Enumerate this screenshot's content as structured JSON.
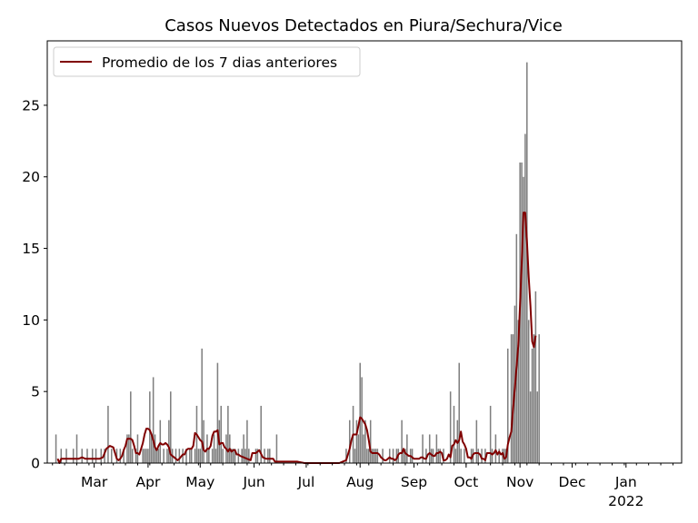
{
  "chart_data": {
    "type": "bar",
    "title": "Casos Nuevos Detectados en Piura/Sechura/Vice",
    "xlabel": "",
    "ylabel": "",
    "ylim": [
      0,
      29.5
    ],
    "y_ticks": [
      0,
      5,
      10,
      15,
      20,
      25
    ],
    "x_ticks": [
      {
        "label": "Mar",
        "day": 59
      },
      {
        "label": "Apr",
        "day": 90
      },
      {
        "label": "May",
        "day": 120
      },
      {
        "label": "Jun",
        "day": 151
      },
      {
        "label": "Jul",
        "day": 181
      },
      {
        "label": "Aug",
        "day": 212
      },
      {
        "label": "Sep",
        "day": 243
      },
      {
        "label": "Oct",
        "day": 273
      },
      {
        "label": "Nov",
        "day": 304
      },
      {
        "label": "Dec",
        "day": 334
      },
      {
        "label": "Jan",
        "day": 365,
        "sublabel": "2022"
      }
    ],
    "x_range_days": [
      32,
      397
    ],
    "bar_color": "#7f7f7f",
    "line_color": "#800000",
    "legend": {
      "label": "Promedio de los 7 dias anteriores",
      "position": "top-left"
    },
    "bars": [
      [
        37,
        2
      ],
      [
        40,
        1
      ],
      [
        43,
        1
      ],
      [
        47,
        1
      ],
      [
        49,
        2
      ],
      [
        52,
        1
      ],
      [
        55,
        1
      ],
      [
        58,
        1
      ],
      [
        60,
        1
      ],
      [
        63,
        1
      ],
      [
        65,
        1
      ],
      [
        67,
        4
      ],
      [
        69,
        1
      ],
      [
        72,
        1
      ],
      [
        74,
        1
      ],
      [
        76,
        1
      ],
      [
        78,
        2
      ],
      [
        79,
        2
      ],
      [
        80,
        5
      ],
      [
        81,
        1
      ],
      [
        83,
        1
      ],
      [
        84,
        2
      ],
      [
        87,
        1
      ],
      [
        88,
        1
      ],
      [
        89,
        1
      ],
      [
        90,
        1
      ],
      [
        91,
        5
      ],
      [
        92,
        2
      ],
      [
        93,
        6
      ],
      [
        94,
        2
      ],
      [
        95,
        1
      ],
      [
        96,
        1
      ],
      [
        97,
        3
      ],
      [
        99,
        1
      ],
      [
        101,
        1
      ],
      [
        102,
        3
      ],
      [
        103,
        5
      ],
      [
        104,
        1
      ],
      [
        106,
        1
      ],
      [
        108,
        1
      ],
      [
        110,
        1
      ],
      [
        112,
        1
      ],
      [
        114,
        1
      ],
      [
        115,
        1
      ],
      [
        117,
        1
      ],
      [
        118,
        4
      ],
      [
        119,
        1
      ],
      [
        120,
        1
      ],
      [
        121,
        8
      ],
      [
        122,
        3
      ],
      [
        124,
        2
      ],
      [
        125,
        1
      ],
      [
        127,
        1
      ],
      [
        128,
        2
      ],
      [
        129,
        1
      ],
      [
        130,
        7
      ],
      [
        131,
        3
      ],
      [
        132,
        4
      ],
      [
        133,
        1
      ],
      [
        135,
        2
      ],
      [
        136,
        4
      ],
      [
        137,
        2
      ],
      [
        138,
        1
      ],
      [
        139,
        1
      ],
      [
        140,
        1
      ],
      [
        142,
        1
      ],
      [
        144,
        1
      ],
      [
        145,
        2
      ],
      [
        146,
        1
      ],
      [
        147,
        3
      ],
      [
        148,
        1
      ],
      [
        152,
        1
      ],
      [
        153,
        1
      ],
      [
        155,
        4
      ],
      [
        157,
        1
      ],
      [
        159,
        1
      ],
      [
        160,
        1
      ],
      [
        164,
        2
      ],
      [
        204,
        1
      ],
      [
        206,
        3
      ],
      [
        208,
        4
      ],
      [
        209,
        1
      ],
      [
        210,
        3
      ],
      [
        211,
        2
      ],
      [
        212,
        7
      ],
      [
        213,
        6
      ],
      [
        214,
        2
      ],
      [
        215,
        3
      ],
      [
        216,
        1
      ],
      [
        217,
        1
      ],
      [
        218,
        3
      ],
      [
        219,
        1
      ],
      [
        220,
        1
      ],
      [
        221,
        1
      ],
      [
        222,
        1
      ],
      [
        225,
        1
      ],
      [
        229,
        1
      ],
      [
        231,
        1
      ],
      [
        233,
        1
      ],
      [
        234,
        1
      ],
      [
        236,
        3
      ],
      [
        237,
        1
      ],
      [
        238,
        1
      ],
      [
        239,
        2
      ],
      [
        241,
        1
      ],
      [
        242,
        1
      ],
      [
        248,
        2
      ],
      [
        250,
        1
      ],
      [
        252,
        2
      ],
      [
        253,
        1
      ],
      [
        254,
        1
      ],
      [
        256,
        2
      ],
      [
        257,
        1
      ],
      [
        258,
        1
      ],
      [
        260,
        1
      ],
      [
        264,
        5
      ],
      [
        266,
        4
      ],
      [
        267,
        1
      ],
      [
        268,
        3
      ],
      [
        269,
        7
      ],
      [
        270,
        1
      ],
      [
        272,
        1
      ],
      [
        276,
        1
      ],
      [
        277,
        1
      ],
      [
        279,
        3
      ],
      [
        280,
        1
      ],
      [
        282,
        1
      ],
      [
        284,
        1
      ],
      [
        287,
        4
      ],
      [
        288,
        1
      ],
      [
        290,
        2
      ],
      [
        292,
        1
      ],
      [
        294,
        1
      ],
      [
        295,
        1
      ],
      [
        296,
        1
      ],
      [
        297,
        8
      ],
      [
        299,
        9
      ],
      [
        300,
        9
      ],
      [
        301,
        11
      ],
      [
        302,
        16
      ],
      [
        303,
        10
      ],
      [
        304,
        21
      ],
      [
        305,
        21
      ],
      [
        306,
        20
      ],
      [
        307,
        23
      ],
      [
        308,
        28
      ],
      [
        309,
        10
      ],
      [
        310,
        5
      ],
      [
        311,
        8
      ],
      [
        312,
        9
      ],
      [
        313,
        12
      ],
      [
        314,
        5
      ],
      [
        315,
        9
      ]
    ],
    "avg_line": [
      [
        38,
        0.3
      ],
      [
        39,
        0
      ],
      [
        40,
        0.3
      ],
      [
        45,
        0.3
      ],
      [
        50,
        0.3
      ],
      [
        52,
        0.4
      ],
      [
        54,
        0.3
      ],
      [
        57,
        0.3
      ],
      [
        60,
        0.3
      ],
      [
        62,
        0.3
      ],
      [
        64,
        0.4
      ],
      [
        66,
        1.0
      ],
      [
        68,
        1.2
      ],
      [
        70,
        1.1
      ],
      [
        71,
        0.7
      ],
      [
        72,
        0.3
      ],
      [
        73,
        0.2
      ],
      [
        74,
        0.3
      ],
      [
        75,
        0.5
      ],
      [
        76,
        0.9
      ],
      [
        77,
        1.2
      ],
      [
        78,
        1.7
      ],
      [
        80,
        1.7
      ],
      [
        81,
        1.6
      ],
      [
        82,
        1.2
      ],
      [
        83,
        0.7
      ],
      [
        84,
        0.7
      ],
      [
        85,
        0.6
      ],
      [
        86,
        1.0
      ],
      [
        87,
        1.4
      ],
      [
        88,
        2.0
      ],
      [
        89,
        2.4
      ],
      [
        90,
        2.4
      ],
      [
        91,
        2.3
      ],
      [
        92,
        2.0
      ],
      [
        93,
        1.6
      ],
      [
        94,
        1.1
      ],
      [
        95,
        0.9
      ],
      [
        96,
        1.2
      ],
      [
        97,
        1.4
      ],
      [
        98,
        1.3
      ],
      [
        99,
        1.3
      ],
      [
        100,
        1.4
      ],
      [
        101,
        1.3
      ],
      [
        102,
        1.1
      ],
      [
        103,
        0.6
      ],
      [
        104,
        0.5
      ],
      [
        105,
        0.4
      ],
      [
        106,
        0.3
      ],
      [
        107,
        0.2
      ],
      [
        108,
        0.3
      ],
      [
        110,
        0.6
      ],
      [
        111,
        0.6
      ],
      [
        112,
        0.9
      ],
      [
        113,
        1.0
      ],
      [
        114,
        1.0
      ],
      [
        115,
        1.0
      ],
      [
        116,
        1.2
      ],
      [
        117,
        2.1
      ],
      [
        118,
        2.0
      ],
      [
        119,
        1.8
      ],
      [
        120,
        1.6
      ],
      [
        121,
        1.5
      ],
      [
        122,
        0.9
      ],
      [
        123,
        0.8
      ],
      [
        124,
        1.0
      ],
      [
        125,
        1.0
      ],
      [
        126,
        1.2
      ],
      [
        127,
        1.9
      ],
      [
        128,
        2.2
      ],
      [
        129,
        2.2
      ],
      [
        130,
        2.3
      ],
      [
        131,
        1.3
      ],
      [
        132,
        1.4
      ],
      [
        133,
        1.4
      ],
      [
        134,
        1.1
      ],
      [
        135,
        1.0
      ],
      [
        136,
        0.8
      ],
      [
        137,
        1.0
      ],
      [
        138,
        0.8
      ],
      [
        139,
        0.9
      ],
      [
        140,
        0.9
      ],
      [
        141,
        0.6
      ],
      [
        142,
        0.6
      ],
      [
        143,
        0.5
      ],
      [
        145,
        0.4
      ],
      [
        147,
        0.3
      ],
      [
        149,
        0.2
      ],
      [
        150,
        0.7
      ],
      [
        152,
        0.7
      ],
      [
        154,
        0.9
      ],
      [
        156,
        0.4
      ],
      [
        158,
        0.3
      ],
      [
        160,
        0.3
      ],
      [
        162,
        0.3
      ],
      [
        163,
        0.1
      ],
      [
        164,
        0.1
      ],
      [
        166,
        0.1
      ],
      [
        170,
        0.1
      ],
      [
        176,
        0.1
      ],
      [
        180,
        0
      ],
      [
        200,
        0
      ],
      [
        204,
        0.2
      ],
      [
        205,
        0.6
      ],
      [
        206,
        1.0
      ],
      [
        207,
        1.6
      ],
      [
        208,
        2.0
      ],
      [
        209,
        2.0
      ],
      [
        210,
        2.0
      ],
      [
        211,
        2.6
      ],
      [
        212,
        3.2
      ],
      [
        213,
        3.1
      ],
      [
        214,
        2.9
      ],
      [
        215,
        2.7
      ],
      [
        216,
        2.3
      ],
      [
        217,
        1.6
      ],
      [
        218,
        0.8
      ],
      [
        219,
        0.7
      ],
      [
        220,
        0.7
      ],
      [
        222,
        0.7
      ],
      [
        223,
        0.6
      ],
      [
        224,
        0.4
      ],
      [
        225,
        0.3
      ],
      [
        226,
        0.2
      ],
      [
        227,
        0.2
      ],
      [
        228,
        0.3
      ],
      [
        229,
        0.4
      ],
      [
        230,
        0.3
      ],
      [
        231,
        0.3
      ],
      [
        232,
        0.2
      ],
      [
        233,
        0.3
      ],
      [
        234,
        0.6
      ],
      [
        235,
        0.7
      ],
      [
        236,
        0.7
      ],
      [
        237,
        1.0
      ],
      [
        238,
        0.7
      ],
      [
        239,
        0.6
      ],
      [
        240,
        0.5
      ],
      [
        241,
        0.5
      ],
      [
        242,
        0.4
      ],
      [
        243,
        0.3
      ],
      [
        245,
        0.3
      ],
      [
        246,
        0.3
      ],
      [
        247,
        0.4
      ],
      [
        248,
        0.4
      ],
      [
        249,
        0.3
      ],
      [
        250,
        0.3
      ],
      [
        251,
        0.6
      ],
      [
        252,
        0.7
      ],
      [
        253,
        0.6
      ],
      [
        254,
        0.5
      ],
      [
        255,
        0.5
      ],
      [
        256,
        0.7
      ],
      [
        257,
        0.7
      ],
      [
        258,
        0.8
      ],
      [
        259,
        0.7
      ],
      [
        260,
        0.2
      ],
      [
        261,
        0.2
      ],
      [
        262,
        0.3
      ],
      [
        263,
        0.6
      ],
      [
        264,
        0.4
      ],
      [
        265,
        1.2
      ],
      [
        266,
        1.3
      ],
      [
        267,
        1.6
      ],
      [
        268,
        1.4
      ],
      [
        269,
        1.6
      ],
      [
        270,
        2.2
      ],
      [
        271,
        1.5
      ],
      [
        272,
        1.3
      ],
      [
        273,
        1.0
      ],
      [
        274,
        0.4
      ],
      [
        275,
        0.4
      ],
      [
        276,
        0.3
      ],
      [
        277,
        0.6
      ],
      [
        278,
        0.7
      ],
      [
        279,
        0.7
      ],
      [
        280,
        0.7
      ],
      [
        281,
        0.6
      ],
      [
        282,
        0.3
      ],
      [
        283,
        0.3
      ],
      [
        284,
        0.2
      ],
      [
        285,
        0.7
      ],
      [
        286,
        0.7
      ],
      [
        287,
        0.7
      ],
      [
        288,
        0.6
      ],
      [
        289,
        0.7
      ],
      [
        290,
        0.9
      ],
      [
        291,
        0.6
      ],
      [
        292,
        0.8
      ],
      [
        293,
        0.6
      ],
      [
        294,
        0.7
      ],
      [
        295,
        0.3
      ],
      [
        296,
        0.4
      ],
      [
        297,
        1.3
      ],
      [
        298,
        1.8
      ],
      [
        299,
        2.2
      ],
      [
        300,
        3.8
      ],
      [
        301,
        5.2
      ],
      [
        302,
        6.7
      ],
      [
        303,
        8.2
      ],
      [
        304,
        11.0
      ],
      [
        305,
        14.0
      ],
      [
        306,
        17.5
      ],
      [
        307,
        17.5
      ],
      [
        308,
        15.5
      ],
      [
        309,
        13.0
      ],
      [
        310,
        11.0
      ],
      [
        311,
        8.5
      ],
      [
        312,
        8.1
      ],
      [
        313,
        8.9
      ]
    ]
  }
}
